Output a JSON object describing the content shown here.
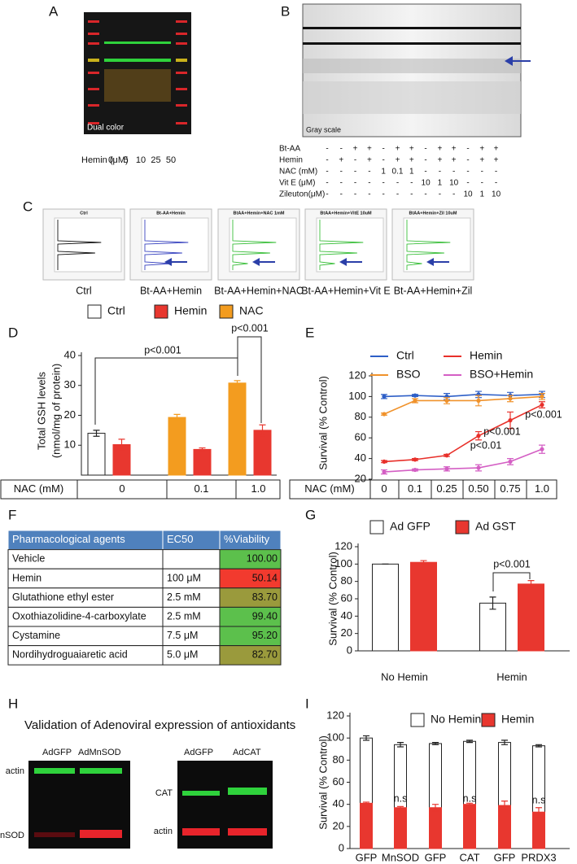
{
  "panel_labels": [
    "A",
    "B",
    "C",
    "D",
    "E",
    "F",
    "G",
    "H",
    "I"
  ],
  "gel_a": {
    "image_text": "Dual color",
    "axis_label": "Hemin (μM)",
    "lanes": [
      "0",
      "5",
      "10",
      "25",
      "50"
    ]
  },
  "gel_b": {
    "image_text": "Gray scale",
    "rows": [
      {
        "label": "Bt-AA",
        "cells": [
          "-",
          "-",
          "+",
          "+",
          "-",
          "+",
          "+",
          "-",
          "+",
          "+",
          "-",
          "+",
          "+"
        ]
      },
      {
        "label": "Hemin",
        "cells": [
          "-",
          "+",
          "-",
          "+",
          "-",
          "+",
          "+",
          "-",
          "+",
          "+",
          "-",
          "+",
          "+"
        ]
      },
      {
        "label": "NAC (mM)",
        "cells": [
          "-",
          "-",
          "-",
          "-",
          "1",
          "0.1",
          "1",
          "-",
          "-",
          "-",
          "-",
          "-",
          "-"
        ]
      },
      {
        "label": "Vit E (μM)",
        "cells": [
          "-",
          "-",
          "-",
          "-",
          "-",
          "-",
          "-",
          "10",
          "1",
          "10",
          "-",
          "-",
          "-"
        ]
      },
      {
        "label": "Zileuton(μM)",
        "cells": [
          "-",
          "-",
          "-",
          "-",
          "-",
          "-",
          "-",
          "-",
          "-",
          "-",
          "10",
          "1",
          "10"
        ]
      }
    ]
  },
  "profiles": [
    {
      "title": "Ctrl",
      "caption": "Ctrl"
    },
    {
      "title": "Bt-AA+Hemin",
      "caption": "Bt-AA+Hemin"
    },
    {
      "title": "BtAA+Hemin+NAC 1mM",
      "caption": "Bt-AA+Hemin+NAC"
    },
    {
      "title": "BtAA+Hemin+VitE 10uM",
      "caption": "Bt-AA+Hemin+Vit E"
    },
    {
      "title": "BtAA+Hemin+Zil 10uM",
      "caption": "Bt-AA+Hemin+Zil"
    }
  ],
  "table": {
    "header": [
      "Pharmacological agents",
      "EC50",
      "%Viability"
    ],
    "header_color": "#4f81bd",
    "rows": [
      {
        "cells": [
          "Vehicle",
          null,
          "100.00"
        ],
        "color": "#5cc04c"
      },
      {
        "cells": [
          "Hemin",
          "100 μM",
          "50.14"
        ],
        "color": "#f23a2e"
      },
      {
        "cells": [
          "Glutathione ethyl ester",
          "2.5 mM",
          "83.70"
        ],
        "color": "#9a9a3c"
      },
      {
        "cells": [
          "Oxothiazolidine-4-carboxylate",
          "2.5 mM",
          "99.40"
        ],
        "color": "#5cc04c"
      },
      {
        "cells": [
          "Cystamine",
          "7.5 μM",
          "95.20"
        ],
        "color": "#5cc04c"
      },
      {
        "cells": [
          "Nordihydroguaiaretic acid",
          "5.0 μM",
          "82.70"
        ],
        "color": "#9a9a3c"
      }
    ]
  },
  "blots": {
    "title": "Validation of Adenoviral expression of antioxidants",
    "left": {
      "lanes": [
        "AdGFP",
        "AdMnSOD"
      ],
      "bands": [
        "actin",
        "MnSOD"
      ]
    },
    "right": {
      "lanes": [
        "AdGFP",
        "AdCAT"
      ],
      "bands": [
        "CAT",
        "actin"
      ]
    }
  },
  "chart_data": [
    {
      "type": "bar",
      "y_label": [
        "Total GSH levels",
        "(nmol/mg of protein)"
      ],
      "x_label": "NAC (mM)",
      "categories": [
        "0",
        "0.1",
        "1.0"
      ],
      "series": [
        {
          "name": "Ctrl",
          "color": "#ffffff",
          "values": [
            14,
            null,
            null
          ],
          "errors": [
            1,
            null,
            null
          ]
        },
        {
          "name": "Hemin",
          "color": "#e8372f",
          "values": [
            10.2,
            8.6,
            15
          ],
          "errors": [
            1.8,
            0.5,
            1.8
          ]
        },
        {
          "name": "NAC",
          "color": "#f39c1f",
          "values": [
            null,
            19.3,
            30.8
          ],
          "errors": [
            null,
            1,
            0.8
          ]
        }
      ],
      "ylim": [
        0,
        40
      ],
      "yticks": [
        10,
        20,
        30,
        40
      ],
      "annotations": [
        "p<0.001",
        "p<0.001"
      ]
    },
    {
      "type": "line",
      "y_label": [
        "Survival (% Control)"
      ],
      "x_label": "NAC (mM)",
      "categories": [
        "0",
        "0.1",
        "0.25",
        "0.50",
        "0.75",
        "1.0"
      ],
      "series": [
        {
          "name": "Ctrl",
          "color": "#2e5fc7",
          "values": [
            100,
            101,
            100,
            102,
            101,
            102
          ],
          "errors": [
            2,
            1,
            3,
            3,
            3,
            3
          ]
        },
        {
          "name": "Hemin",
          "color": "#e8302a",
          "values": [
            37,
            39,
            43,
            62,
            77,
            92
          ],
          "errors": [
            1,
            1,
            1,
            4,
            8,
            3
          ]
        },
        {
          "name": "BSO",
          "color": "#f0922b",
          "values": [
            83,
            96,
            96,
            96,
            98,
            100
          ],
          "errors": [
            1,
            2,
            3,
            5,
            3,
            3
          ]
        },
        {
          "name": "BSO+Hemin",
          "color": "#d45fc4",
          "values": [
            27,
            29,
            30,
            31,
            37,
            49
          ],
          "errors": [
            2,
            1,
            2,
            3,
            3,
            4
          ]
        }
      ],
      "ylim": [
        20,
        120
      ],
      "yticks": [
        20,
        40,
        60,
        80,
        100,
        120
      ],
      "annotations": [
        "p<0.001",
        "p<0.001",
        "p<0.01"
      ]
    },
    {
      "type": "bar",
      "y_label": [
        "Survival (% Control)"
      ],
      "categories": [
        "No Hemin",
        "Hemin"
      ],
      "series": [
        {
          "name": "Ad GFP",
          "color": "#ffffff",
          "values": [
            100,
            55
          ],
          "errors": [
            0,
            7
          ]
        },
        {
          "name": "Ad GST",
          "color": "#e8372f",
          "values": [
            102,
            77
          ],
          "errors": [
            2,
            4
          ]
        }
      ],
      "ylim": [
        0,
        120
      ],
      "yticks": [
        0,
        20,
        40,
        60,
        80,
        100,
        120
      ],
      "annotations": [
        "p<0.001"
      ]
    },
    {
      "type": "bar",
      "y_label": [
        "Survival (% Control)"
      ],
      "categories": [
        "GFP",
        "MnSOD",
        "GFP",
        "CAT",
        "GFP",
        "PRDX3"
      ],
      "series": [
        {
          "name": "No Hemin",
          "color": "#ffffff",
          "values": [
            100,
            94,
            95,
            97,
            96,
            93
          ],
          "errors": [
            2,
            2,
            1,
            1,
            2,
            1
          ]
        },
        {
          "name": "Hemin",
          "color": "#e8372f",
          "values": [
            41,
            37,
            37,
            40,
            39,
            33
          ],
          "errors": [
            1,
            1,
            3,
            1,
            4,
            4
          ]
        }
      ],
      "ylim": [
        0,
        120
      ],
      "yticks": [
        0,
        20,
        40,
        60,
        80,
        100,
        120
      ],
      "annotations": [
        "n.s",
        "n.s",
        "n.s"
      ]
    }
  ]
}
